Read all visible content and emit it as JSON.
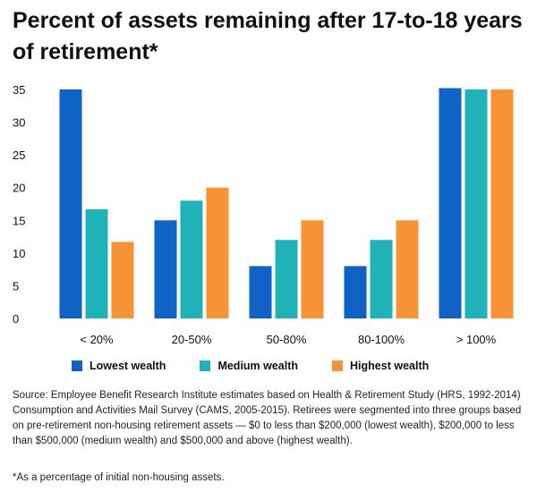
{
  "title": "Percent of assets remaining after 17-to-18 years of retirement*",
  "legend": {
    "lowest": "Lowest wealth",
    "medium": "Medium wealth",
    "highest": "Highest wealth"
  },
  "source": "Source: Employee Benefit Research Institute estimates based on Health & Retirement Study (HRS, 1992-2014) Consumption and Activities Mail Survey (CAMS, 2005-2015). Retirees were segmented into three groups based on pre-retirement non-housing retirement assets — $0 to less than $200,000 (lowest wealth), $200,000 to less than $500,000 (medium wealth) and $500,000 and above (highest wealth).",
  "footnote": "*As a percentage of initial non-housing assets.",
  "chart_data": {
    "type": "bar",
    "categories": [
      "< 20%",
      "20-50%",
      "50-80%",
      "80-100%",
      "> 100%"
    ],
    "series": [
      {
        "name": "Lowest wealth",
        "values": [
          35,
          15,
          8,
          8,
          35.2
        ],
        "color": "#0f62c6"
      },
      {
        "name": "Medium wealth",
        "values": [
          16.7,
          18,
          12,
          12,
          35
        ],
        "color": "#1fb3b9"
      },
      {
        "name": "Highest wealth",
        "values": [
          11.7,
          20,
          15,
          15,
          35
        ],
        "color": "#f59335"
      }
    ],
    "yticks": [
      0,
      5,
      10,
      15,
      20,
      25,
      30,
      35
    ],
    "ylim": [
      0,
      35
    ],
    "title": "",
    "xlabel": "",
    "ylabel": "",
    "grid": false,
    "legend_position": "bottom"
  }
}
